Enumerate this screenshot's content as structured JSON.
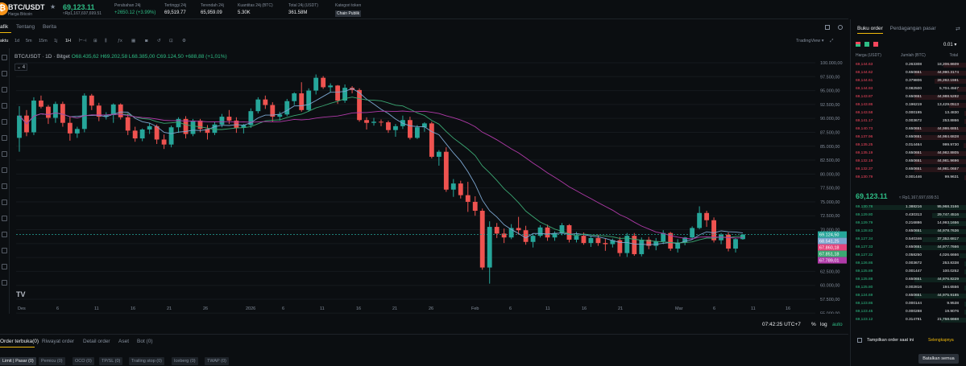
{
  "ticker": {
    "pair": "BTC/USDT",
    "subtitle": "Harga Bitcoin",
    "price": "69,123.11",
    "price_idr": "≈Rp1,167,697,699.51",
    "stats": [
      {
        "label": "Perubahan 24j",
        "value": "+2650.12 (+3.99%)",
        "green": true
      },
      {
        "label": "Tertinggi 24j",
        "value": "69,519.77"
      },
      {
        "label": "Terendah 24j",
        "value": "65,959.09"
      },
      {
        "label": "Kuantitas 24j (BTC)",
        "value": "5.30K"
      },
      {
        "label": "Total 24j (USDT)",
        "value": "361.58M"
      },
      {
        "label": "Kategori token",
        "value": "Chain Publik",
        "badge": true
      }
    ]
  },
  "tabs": {
    "chart": "afik",
    "about": "Tentang",
    "news": "Berita"
  },
  "timeframes": [
    "aktu",
    "1d",
    "5m",
    "15m",
    "1j",
    "1H"
  ],
  "tradingview_label": "TradingView ▾",
  "chart_header": {
    "symbol": "BTC/USDT · 1D · Bitget",
    "ohlc": "O68.435,62 H69.202,58 L68.385,00 C69.124,50 +688,88 (+1,01%)",
    "layers": "4"
  },
  "clock": "07:42:25 UTC+7",
  "pct_label": "%",
  "log_label": "log",
  "auto_label": "auto",
  "chart_data": {
    "type": "candlestick",
    "y_ticks": [
      "100.000,00",
      "97.500,00",
      "95.000,00",
      "92.500,00",
      "90.000,00",
      "87.500,00",
      "85.000,00",
      "82.500,00",
      "80.000,00",
      "77.500,00",
      "75.000,00",
      "72.500,00",
      "70.000,00",
      "67.500,00",
      "65.000,00",
      "62.500,00",
      "60.000,00",
      "57.500,00",
      "55.000,00"
    ],
    "x_ticks": [
      "Des",
      "6",
      "11",
      "16",
      "21",
      "26",
      "2026",
      "6",
      "11",
      "16",
      "21",
      "26",
      "Feb",
      "6",
      "11",
      "16",
      "21",
      "Mar",
      "6",
      "11",
      "16"
    ],
    "price_labels": [
      {
        "text": "69.124,50",
        "color": "#26a69a"
      },
      {
        "text": "68.541,25",
        "color": "#7ba5cf"
      },
      {
        "text": "67.860,18",
        "color": "#e4447c"
      },
      {
        "text": "67.851,18",
        "color": "#3ba873"
      },
      {
        "text": "67.789,01",
        "color": "#b03aa8"
      }
    ],
    "candles": [
      [
        86500,
        92200,
        84000,
        90500
      ],
      [
        90500,
        91500,
        86800,
        87500
      ],
      [
        87500,
        93800,
        87000,
        93200
      ],
      [
        93200,
        94100,
        91800,
        92100
      ],
      [
        92100,
        92400,
        89000,
        90100
      ],
      [
        90100,
        93000,
        89200,
        92600
      ],
      [
        92600,
        93000,
        88500,
        89200
      ],
      [
        89200,
        90300,
        86000,
        87300
      ],
      [
        87300,
        88500,
        86500,
        88100
      ],
      [
        88100,
        94500,
        87500,
        94100
      ],
      [
        94100,
        94400,
        91500,
        92300
      ],
      [
        92300,
        92800,
        89500,
        90300
      ],
      [
        90300,
        91100,
        89800,
        90600
      ],
      [
        90600,
        92700,
        89200,
        92500
      ],
      [
        92500,
        92700,
        89800,
        90200
      ],
      [
        90200,
        90900,
        87000,
        87800
      ],
      [
        87800,
        88500,
        85800,
        86400
      ],
      [
        86400,
        88200,
        85900,
        88000
      ],
      [
        88000,
        89200,
        87200,
        88600
      ],
      [
        88600,
        88900,
        85400,
        86200
      ],
      [
        86200,
        87100,
        84500,
        85300
      ],
      [
        85300,
        88700,
        84800,
        88400
      ],
      [
        88400,
        90200,
        87400,
        89900
      ],
      [
        89900,
        90400,
        86400,
        87200
      ],
      [
        87200,
        89900,
        86800,
        89600
      ],
      [
        89600,
        89900,
        87500,
        88100
      ],
      [
        88100,
        88800,
        86200,
        87400
      ],
      [
        87400,
        89400,
        87000,
        88900
      ],
      [
        88900,
        90800,
        88400,
        90300
      ],
      [
        90300,
        91500,
        89000,
        89600
      ],
      [
        89600,
        90200,
        87400,
        88300
      ],
      [
        88300,
        89000,
        87300,
        88800
      ],
      [
        88800,
        91800,
        88300,
        91300
      ],
      [
        91300,
        93800,
        90900,
        93400
      ],
      [
        93400,
        94100,
        91700,
        92400
      ],
      [
        92400,
        92900,
        89400,
        90300
      ],
      [
        90300,
        91200,
        89600,
        90700
      ],
      [
        90700,
        93500,
        90400,
        93100
      ],
      [
        93100,
        94700,
        92400,
        94500
      ],
      [
        94500,
        96500,
        91200,
        91500
      ],
      [
        91500,
        95400,
        91200,
        95000
      ],
      [
        95000,
        97900,
        94300,
        97300
      ],
      [
        97300,
        97600,
        95300,
        95600
      ],
      [
        95600,
        96300,
        94700,
        95900
      ],
      [
        95900,
        96000,
        92600,
        93200
      ],
      [
        93200,
        96100,
        92800,
        95500
      ],
      [
        95500,
        95800,
        94500,
        95100
      ],
      [
        95100,
        95400,
        89400,
        89700
      ],
      [
        89700,
        90200,
        88000,
        89200
      ],
      [
        89200,
        90100,
        88700,
        89400
      ],
      [
        89400,
        89800,
        88600,
        89300
      ],
      [
        89300,
        89600,
        87400,
        87900
      ],
      [
        87900,
        89000,
        86700,
        88600
      ],
      [
        88600,
        90500,
        88100,
        89700
      ],
      [
        89700,
        90300,
        86200,
        86500
      ],
      [
        86500,
        88800,
        86300,
        88400
      ],
      [
        88400,
        89300,
        87600,
        89100
      ],
      [
        89100,
        89400,
        82800,
        83100
      ],
      [
        83100,
        84300,
        81500,
        84000
      ],
      [
        84000,
        84800,
        76800,
        77200
      ],
      [
        77200,
        79100,
        75900,
        78300
      ],
      [
        78300,
        78800,
        75600,
        76200
      ],
      [
        76200,
        78600,
        73200,
        75000
      ],
      [
        75000,
        76000,
        72500,
        73400
      ],
      [
        73400,
        73800,
        62800,
        63200
      ],
      [
        63200,
        71500,
        60300,
        70500
      ],
      [
        70500,
        71200,
        68500,
        69300
      ],
      [
        69300,
        70200,
        67600,
        68600
      ],
      [
        68600,
        71000,
        68300,
        70300
      ],
      [
        70300,
        72300,
        69100,
        69900
      ],
      [
        69900,
        70700,
        67300,
        67800
      ],
      [
        67800,
        69100,
        66800,
        68900
      ],
      [
        68900,
        70800,
        68600,
        70400
      ],
      [
        70400,
        70900,
        68000,
        68600
      ],
      [
        68600,
        69700,
        68000,
        69400
      ],
      [
        69400,
        71200,
        69000,
        70800
      ],
      [
        70800,
        71000,
        67700,
        68200
      ],
      [
        68200,
        69600,
        67700,
        68900
      ],
      [
        68900,
        69500,
        67300,
        67600
      ],
      [
        67600,
        68900,
        66900,
        68500
      ],
      [
        68500,
        69100,
        67100,
        67600
      ],
      [
        67600,
        68400,
        66200,
        67400
      ],
      [
        67400,
        68400,
        66800,
        68100
      ],
      [
        68100,
        68700,
        65200,
        65800
      ],
      [
        65800,
        69400,
        65100,
        68900
      ],
      [
        68900,
        69400,
        65300,
        65600
      ],
      [
        65600,
        68600,
        65200,
        68200
      ],
      [
        68200,
        68700,
        66500,
        67100
      ],
      [
        67100,
        68500,
        66300,
        67900
      ],
      [
        67900,
        69900,
        67400,
        69400
      ],
      [
        69400,
        69600,
        66200,
        66600
      ],
      [
        66600,
        68300,
        65900,
        67700
      ],
      [
        67700,
        68700,
        67200,
        68600
      ],
      [
        68600,
        70600,
        68200,
        70300
      ],
      [
        70300,
        74200,
        70100,
        73000
      ],
      [
        73000,
        73400,
        70500,
        71700
      ],
      [
        71700,
        72200,
        67700,
        68100
      ],
      [
        68100,
        69400,
        67400,
        69100
      ],
      [
        69100,
        69500,
        66100,
        66600
      ],
      [
        66600,
        68500,
        65900,
        68300
      ],
      [
        68300,
        69202,
        68200,
        69124
      ]
    ]
  },
  "bottom": {
    "tabs": [
      "Order terbuka(0)",
      "Riwayat order",
      "Detail order",
      "Aset",
      "Bot (0)"
    ],
    "order_types": [
      "Limit | Pasar (0)",
      "Pemicu (0)",
      "OCO (0)",
      "TP/SL (0)",
      "Trailing stop (0)",
      "Iceberg (0)",
      "TWAP (0)"
    ]
  },
  "orderbook": {
    "tabs": [
      "Buku order",
      "Perdagangan pasar"
    ],
    "precision": "0.01 ▾",
    "headers": {
      "price": "Harga (USDT)",
      "qty": "Jumlah (BTC)",
      "total": "Total"
    },
    "asks": [
      [
        "69,144.63",
        "0.263308",
        "18,206.8609",
        0.2
      ],
      [
        "69,144.62",
        "0.650651",
        "44,990.3174",
        0.45
      ],
      [
        "69,144.61",
        "0.379806",
        "26,262.1591",
        0.28
      ],
      [
        "69,144.93",
        "0.082500",
        "5,704.4567",
        0.08
      ],
      [
        "69,143.87",
        "0.650651",
        "44,988.5282",
        0.45
      ],
      [
        "69,143.86",
        "0.196219",
        "13,429.0513",
        0.15
      ],
      [
        "69,143.58",
        "0.000195",
        "13.4830",
        0.02
      ],
      [
        "69,141.17",
        "0.003672",
        "253.8866",
        0.02
      ],
      [
        "69,140.73",
        "0.650651",
        "44,986.6851",
        0.45
      ],
      [
        "69,137.96",
        "0.650651",
        "44,984.6828",
        0.45
      ],
      [
        "69,135.25",
        "0.014464",
        "999.9730",
        0.03
      ],
      [
        "69,135.19",
        "0.650651",
        "44,982.8805",
        0.45
      ],
      [
        "69,132.19",
        "0.650651",
        "44,981.9696",
        0.45
      ],
      [
        "69,132.37",
        "0.650651",
        "44,981.0657",
        0.45
      ],
      [
        "69,130.79",
        "0.001446",
        "99.9631",
        0.02
      ]
    ],
    "mid_price": "69,123.11",
    "mid_idr": "≈ Rp1,167,697,699.51",
    "bids": [
      [
        "69,130.78",
        "1.388216",
        "95,968.3166",
        0.9
      ],
      [
        "69,129.80",
        "0.430313",
        "29,747.4516",
        0.3
      ],
      [
        "69,129.79",
        "0.216886",
        "14,993.1656",
        0.16
      ],
      [
        "69,128.83",
        "0.650651",
        "44,978.7636",
        0.45
      ],
      [
        "69,127.34",
        "0.540346",
        "37,352.6817",
        0.38
      ],
      [
        "69,127.33",
        "0.650651",
        "44,977.7666",
        0.45
      ],
      [
        "69,127.32",
        "0.058250",
        "4,026.6666",
        0.06
      ],
      [
        "69,126.86",
        "0.003672",
        "253.8338",
        0.02
      ],
      [
        "69,125.89",
        "0.001447",
        "100.0252",
        0.02
      ],
      [
        "69,125.88",
        "0.650651",
        "44,976.8229",
        0.45
      ],
      [
        "69,125.80",
        "0.002816",
        "194.6556",
        0.02
      ],
      [
        "69,124.69",
        "0.650651",
        "44,975.9185",
        0.45
      ],
      [
        "69,123.86",
        "0.000144",
        "9.9538",
        0.02
      ],
      [
        "69,123.45",
        "0.000288",
        "19.9076",
        0.02
      ],
      [
        "69,123.12",
        "0.314781",
        "21,758.6668",
        0.22
      ]
    ]
  },
  "footer": {
    "show_current": "Tampilkan order saat ini",
    "select_all": "Selengkapnya",
    "cancel_all": "Batalkan semua"
  }
}
